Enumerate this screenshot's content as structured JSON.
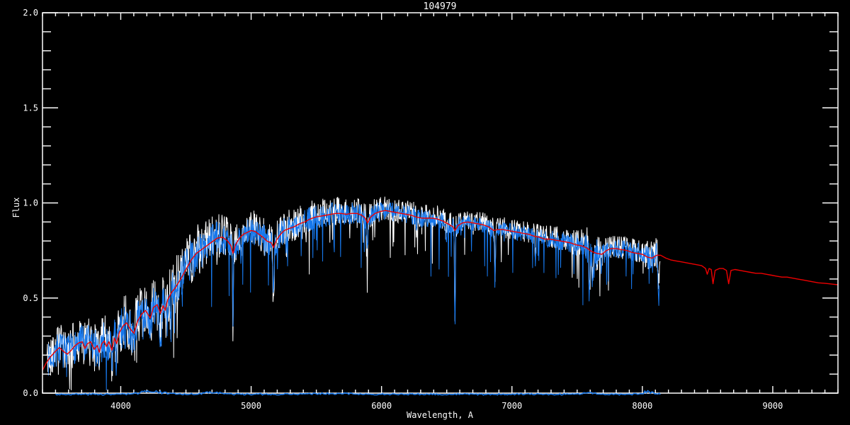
{
  "title": "104979",
  "axes": {
    "xlabel": "Wavelength, A",
    "ylabel": "Flux",
    "xmin": 3400,
    "xmax": 9500,
    "ymin": 0.0,
    "ymax": 2.0,
    "x_major": 1000,
    "x_minor": 100,
    "y_major": 0.5,
    "y_minor": 0.1,
    "xtick_labels": [
      "4000",
      "5000",
      "6000",
      "7000",
      "8000",
      "9000"
    ],
    "xtick_values": [
      4000,
      5000,
      6000,
      7000,
      8000,
      9000
    ],
    "ytick_labels": [
      "0.0",
      "0.5",
      "1.0",
      "1.5",
      "2.0"
    ],
    "ytick_values": [
      0.0,
      0.5,
      1.0,
      1.5,
      2.0
    ]
  },
  "colors": {
    "background": "#000000",
    "axis": "#FFFFFF",
    "white_spectrum": "#FFFFFF",
    "blue_spectrum": "#1778EC",
    "red_model": "#EE0000",
    "error_line": "#1778EC"
  },
  "chart_data": {
    "type": "line",
    "title": "104979",
    "xlabel": "Wavelength, A",
    "ylabel": "Flux",
    "xlim": [
      3400,
      9500
    ],
    "ylim": [
      0.0,
      2.0
    ],
    "grid": false,
    "legend": null,
    "series": [
      {
        "name": "model-red",
        "kind": "smooth",
        "color": "#EE0000",
        "range": [
          3400,
          9500
        ],
        "points": [
          [
            3400,
            0.12
          ],
          [
            3430,
            0.16
          ],
          [
            3460,
            0.19
          ],
          [
            3500,
            0.22
          ],
          [
            3530,
            0.24
          ],
          [
            3560,
            0.22
          ],
          [
            3590,
            0.205
          ],
          [
            3620,
            0.225
          ],
          [
            3650,
            0.25
          ],
          [
            3680,
            0.265
          ],
          [
            3705,
            0.27
          ],
          [
            3725,
            0.235
          ],
          [
            3745,
            0.26
          ],
          [
            3770,
            0.27
          ],
          [
            3797,
            0.23
          ],
          [
            3820,
            0.25
          ],
          [
            3835,
            0.215
          ],
          [
            3855,
            0.26
          ],
          [
            3875,
            0.275
          ],
          [
            3890,
            0.245
          ],
          [
            3910,
            0.27
          ],
          [
            3933,
            0.225
          ],
          [
            3950,
            0.29
          ],
          [
            3968,
            0.26
          ],
          [
            3990,
            0.32
          ],
          [
            4020,
            0.355
          ],
          [
            4045,
            0.37
          ],
          [
            4075,
            0.335
          ],
          [
            4101,
            0.315
          ],
          [
            4130,
            0.38
          ],
          [
            4160,
            0.415
          ],
          [
            4190,
            0.435
          ],
          [
            4227,
            0.395
          ],
          [
            4250,
            0.45
          ],
          [
            4280,
            0.465
          ],
          [
            4304,
            0.42
          ],
          [
            4325,
            0.46
          ],
          [
            4340,
            0.435
          ],
          [
            4360,
            0.49
          ],
          [
            4390,
            0.53
          ],
          [
            4420,
            0.555
          ],
          [
            4460,
            0.6
          ],
          [
            4500,
            0.65
          ],
          [
            4540,
            0.7
          ],
          [
            4580,
            0.735
          ],
          [
            4620,
            0.755
          ],
          [
            4660,
            0.775
          ],
          [
            4700,
            0.795
          ],
          [
            4740,
            0.815
          ],
          [
            4780,
            0.82
          ],
          [
            4820,
            0.8
          ],
          [
            4845,
            0.775
          ],
          [
            4861,
            0.735
          ],
          [
            4880,
            0.78
          ],
          [
            4910,
            0.815
          ],
          [
            4940,
            0.835
          ],
          [
            4970,
            0.845
          ],
          [
            5000,
            0.855
          ],
          [
            5030,
            0.85
          ],
          [
            5060,
            0.835
          ],
          [
            5090,
            0.82
          ],
          [
            5120,
            0.8
          ],
          [
            5155,
            0.79
          ],
          [
            5172,
            0.765
          ],
          [
            5195,
            0.805
          ],
          [
            5225,
            0.835
          ],
          [
            5255,
            0.855
          ],
          [
            5290,
            0.865
          ],
          [
            5330,
            0.875
          ],
          [
            5370,
            0.89
          ],
          [
            5410,
            0.9
          ],
          [
            5450,
            0.915
          ],
          [
            5490,
            0.925
          ],
          [
            5530,
            0.93
          ],
          [
            5570,
            0.935
          ],
          [
            5610,
            0.94
          ],
          [
            5650,
            0.945
          ],
          [
            5690,
            0.945
          ],
          [
            5730,
            0.94
          ],
          [
            5770,
            0.945
          ],
          [
            5810,
            0.945
          ],
          [
            5850,
            0.935
          ],
          [
            5875,
            0.92
          ],
          [
            5893,
            0.895
          ],
          [
            5915,
            0.925
          ],
          [
            5950,
            0.945
          ],
          [
            5990,
            0.955
          ],
          [
            6030,
            0.96
          ],
          [
            6070,
            0.955
          ],
          [
            6110,
            0.95
          ],
          [
            6150,
            0.945
          ],
          [
            6190,
            0.94
          ],
          [
            6230,
            0.935
          ],
          [
            6270,
            0.925
          ],
          [
            6310,
            0.92
          ],
          [
            6350,
            0.92
          ],
          [
            6390,
            0.92
          ],
          [
            6430,
            0.915
          ],
          [
            6470,
            0.905
          ],
          [
            6510,
            0.89
          ],
          [
            6548,
            0.875
          ],
          [
            6563,
            0.855
          ],
          [
            6585,
            0.88
          ],
          [
            6620,
            0.895
          ],
          [
            6660,
            0.9
          ],
          [
            6700,
            0.895
          ],
          [
            6740,
            0.89
          ],
          [
            6780,
            0.885
          ],
          [
            6820,
            0.875
          ],
          [
            6860,
            0.855
          ],
          [
            6890,
            0.86
          ],
          [
            6930,
            0.86
          ],
          [
            6970,
            0.855
          ],
          [
            7010,
            0.85
          ],
          [
            7050,
            0.845
          ],
          [
            7090,
            0.84
          ],
          [
            7130,
            0.835
          ],
          [
            7170,
            0.825
          ],
          [
            7210,
            0.82
          ],
          [
            7250,
            0.81
          ],
          [
            7290,
            0.81
          ],
          [
            7330,
            0.805
          ],
          [
            7370,
            0.8
          ],
          [
            7410,
            0.795
          ],
          [
            7450,
            0.79
          ],
          [
            7490,
            0.78
          ],
          [
            7530,
            0.775
          ],
          [
            7570,
            0.765
          ],
          [
            7610,
            0.745
          ],
          [
            7650,
            0.735
          ],
          [
            7690,
            0.73
          ],
          [
            7725,
            0.75
          ],
          [
            7760,
            0.76
          ],
          [
            7800,
            0.76
          ],
          [
            7840,
            0.755
          ],
          [
            7880,
            0.75
          ],
          [
            7920,
            0.74
          ],
          [
            7960,
            0.735
          ],
          [
            8000,
            0.73
          ],
          [
            8040,
            0.715
          ],
          [
            8075,
            0.71
          ],
          [
            8110,
            0.725
          ],
          [
            8140,
            0.725
          ],
          [
            8180,
            0.71
          ],
          [
            8220,
            0.7
          ],
          [
            8260,
            0.695
          ],
          [
            8300,
            0.69
          ],
          [
            8340,
            0.685
          ],
          [
            8380,
            0.68
          ],
          [
            8420,
            0.675
          ],
          [
            8455,
            0.67
          ],
          [
            8485,
            0.655
          ],
          [
            8498,
            0.625
          ],
          [
            8512,
            0.655
          ],
          [
            8528,
            0.65
          ],
          [
            8542,
            0.575
          ],
          [
            8558,
            0.645
          ],
          [
            8590,
            0.655
          ],
          [
            8620,
            0.655
          ],
          [
            8645,
            0.645
          ],
          [
            8662,
            0.575
          ],
          [
            8680,
            0.645
          ],
          [
            8710,
            0.65
          ],
          [
            8750,
            0.645
          ],
          [
            8790,
            0.64
          ],
          [
            8830,
            0.635
          ],
          [
            8870,
            0.63
          ],
          [
            8910,
            0.63
          ],
          [
            8950,
            0.625
          ],
          [
            8990,
            0.62
          ],
          [
            9030,
            0.615
          ],
          [
            9070,
            0.61
          ],
          [
            9110,
            0.61
          ],
          [
            9150,
            0.605
          ],
          [
            9190,
            0.6
          ],
          [
            9230,
            0.595
          ],
          [
            9270,
            0.59
          ],
          [
            9310,
            0.585
          ],
          [
            9350,
            0.58
          ],
          [
            9390,
            0.578
          ],
          [
            9430,
            0.575
          ],
          [
            9470,
            0.572
          ],
          [
            9500,
            0.57
          ]
        ]
      },
      {
        "name": "observed-white",
        "kind": "noisy",
        "color": "#FFFFFF",
        "range": [
          3435,
          8140
        ],
        "continuum_from": "model-red",
        "offset": 0.012,
        "amp_scale": 1.3,
        "seed": 42,
        "spike_prob": 0.05,
        "spike_max": 0.28
      },
      {
        "name": "observed-blue",
        "kind": "noisy",
        "color": "#1778EC",
        "range": [
          3445,
          8130
        ],
        "continuum_from": "model-red",
        "offset": 0.0,
        "amp_scale": 1.0,
        "seed": 7,
        "spike_prob": 0.055,
        "spike_max": 0.3
      },
      {
        "name": "error-blue",
        "kind": "error",
        "color": "#1778EC",
        "range": [
          3500,
          8140
        ],
        "base": -0.006,
        "noise": 0.008,
        "seed": 3,
        "bumps": [
          [
            4250,
            0.014,
            120
          ],
          [
            4700,
            0.009,
            90
          ],
          [
            5600,
            0.005,
            200
          ],
          [
            7600,
            0.009,
            60
          ],
          [
            8050,
            0.014,
            50
          ]
        ]
      }
    ],
    "noise_amplitude_profile": [
      [
        3440,
        0.085
      ],
      [
        3700,
        0.095
      ],
      [
        3900,
        0.105
      ],
      [
        4100,
        0.11
      ],
      [
        4300,
        0.115
      ],
      [
        4500,
        0.115
      ],
      [
        4650,
        0.1
      ],
      [
        4800,
        0.085
      ],
      [
        5000,
        0.075
      ],
      [
        5200,
        0.07
      ],
      [
        5400,
        0.065
      ],
      [
        5600,
        0.06
      ],
      [
        5800,
        0.055
      ],
      [
        6000,
        0.05
      ],
      [
        6200,
        0.05
      ],
      [
        6400,
        0.047
      ],
      [
        6600,
        0.045
      ],
      [
        6800,
        0.042
      ],
      [
        7000,
        0.042
      ],
      [
        7200,
        0.045
      ],
      [
        7400,
        0.048
      ],
      [
        7550,
        0.06
      ],
      [
        7600,
        0.1
      ],
      [
        7650,
        0.08
      ],
      [
        7720,
        0.05
      ],
      [
        7900,
        0.05
      ],
      [
        8050,
        0.06
      ],
      [
        8130,
        0.075
      ]
    ],
    "absorption_lines": [
      [
        3933,
        0.1,
        6
      ],
      [
        3968,
        0.09,
        6
      ],
      [
        4101,
        0.1,
        7
      ],
      [
        4172,
        0.08,
        6
      ],
      [
        4227,
        0.09,
        5
      ],
      [
        4304,
        0.1,
        8
      ],
      [
        4340,
        0.09,
        6
      ],
      [
        4383,
        0.1,
        5
      ],
      [
        4861,
        0.34,
        5
      ],
      [
        4920,
        0.08,
        5
      ],
      [
        5172,
        0.28,
        6
      ],
      [
        5270,
        0.1,
        6
      ],
      [
        5890,
        0.16,
        6
      ],
      [
        6270,
        0.08,
        5
      ],
      [
        6495,
        0.1,
        5
      ],
      [
        6563,
        0.5,
        4
      ],
      [
        6870,
        0.22,
        6
      ],
      [
        7180,
        0.12,
        6
      ],
      [
        7594,
        0.2,
        7
      ],
      [
        7620,
        0.15,
        6
      ],
      [
        8123,
        0.26,
        5
      ]
    ]
  }
}
